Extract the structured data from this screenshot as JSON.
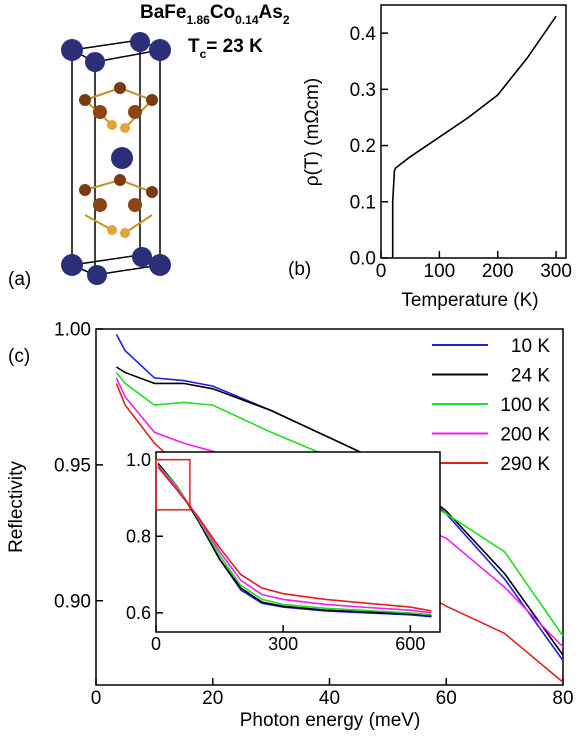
{
  "structure": {
    "formula": [
      "BaFe",
      "1.86",
      "Co",
      "0.14",
      "As",
      "2"
    ],
    "tc": [
      "T",
      "c",
      "= 23 K"
    ],
    "label": "(a)"
  },
  "chart_data": [
    {
      "type": "line",
      "label": "(b)",
      "x_label": "Temperature (K)",
      "y_label": "ρ(T) (mΩcm)",
      "x": [
        18,
        20,
        20,
        23,
        25,
        50,
        100,
        150,
        200,
        250,
        300
      ],
      "series": [
        {
          "color": "#000000",
          "values": [
            0,
            0,
            0.1,
            0.155,
            0.16,
            0.18,
            0.215,
            0.25,
            0.29,
            0.355,
            0.43
          ]
        }
      ],
      "xlim": [
        0,
        317
      ],
      "xticks": [
        0,
        100,
        200,
        300
      ],
      "ylim": [
        0,
        0.45
      ],
      "yticks": [
        {
          "value": 0,
          "label": "0.0"
        },
        0.1,
        0.2,
        0.3,
        0.4
      ],
      "grid": false
    },
    {
      "type": "line",
      "label": "(c)",
      "x_label": "Photon energy (meV)",
      "y_label": "Reflectivity",
      "x": [
        3.5,
        5,
        10,
        15,
        20,
        30,
        40,
        50,
        60,
        70,
        80
      ],
      "series": [
        {
          "name": "10 K",
          "color": "#1f1fe0",
          "values": [
            0.998,
            0.992,
            0.982,
            0.981,
            0.979,
            0.97,
            0.96,
            0.95,
            0.932,
            0.908,
            0.878
          ]
        },
        {
          "name": "24 K",
          "color": "#000000",
          "values": [
            0.986,
            0.984,
            0.98,
            0.98,
            0.978,
            0.97,
            0.96,
            0.95,
            0.933,
            0.91,
            0.88
          ]
        },
        {
          "name": "100 K",
          "color": "#22dd22",
          "values": [
            0.984,
            0.98,
            0.972,
            0.973,
            0.972,
            0.962,
            0.953,
            0.944,
            0.932,
            0.918,
            0.887
          ]
        },
        {
          "name": "200 K",
          "color": "#ee22ee",
          "values": [
            0.982,
            0.975,
            0.962,
            0.958,
            0.955,
            0.948,
            0.941,
            0.932,
            0.923,
            0.905,
            0.883
          ]
        },
        {
          "name": "290 K",
          "color": "#e02020",
          "values": [
            0.98,
            0.972,
            0.958,
            0.948,
            0.94,
            0.926,
            0.916,
            0.91,
            0.898,
            0.888,
            0.87
          ]
        }
      ],
      "xlim": [
        0,
        80
      ],
      "xticks": [
        0,
        20,
        40,
        60,
        80
      ],
      "ylim": [
        0.869,
        1.0
      ],
      "yticks": [
        {
          "value": 0.9,
          "label": "0.90"
        },
        {
          "value": 0.95,
          "label": "0.95"
        },
        {
          "value": 1.0,
          "label": "1.00"
        }
      ],
      "legend": "upper right",
      "grid": false
    },
    {
      "type": "line",
      "x": [
        5,
        50,
        100,
        150,
        200,
        250,
        300,
        400,
        500,
        600,
        650
      ],
      "series": [
        {
          "color": "#1f1fe0",
          "values": [
            0.99,
            0.93,
            0.84,
            0.74,
            0.66,
            0.625,
            0.615,
            0.605,
            0.6,
            0.595,
            0.59
          ]
        },
        {
          "color": "#000000",
          "values": [
            0.99,
            0.93,
            0.84,
            0.74,
            0.665,
            0.628,
            0.617,
            0.607,
            0.602,
            0.597,
            0.592
          ]
        },
        {
          "color": "#22dd22",
          "values": [
            0.985,
            0.93,
            0.845,
            0.75,
            0.672,
            0.635,
            0.622,
            0.612,
            0.606,
            0.6,
            0.595
          ]
        },
        {
          "color": "#ee22ee",
          "values": [
            0.983,
            0.925,
            0.848,
            0.76,
            0.685,
            0.648,
            0.635,
            0.622,
            0.614,
            0.607,
            0.6
          ]
        },
        {
          "color": "#e02020",
          "values": [
            0.98,
            0.92,
            0.85,
            0.77,
            0.7,
            0.665,
            0.65,
            0.635,
            0.625,
            0.615,
            0.605
          ]
        }
      ],
      "xlim": [
        0,
        670
      ],
      "xticks": [
        0,
        300,
        600
      ],
      "ylim": [
        0.55,
        1.02
      ],
      "yticks": [
        {
          "value": 0.6,
          "label": "0.6"
        },
        {
          "value": 0.8,
          "label": "0.8"
        },
        {
          "value": 1.0,
          "label": "1.0"
        }
      ],
      "grid": false
    }
  ]
}
